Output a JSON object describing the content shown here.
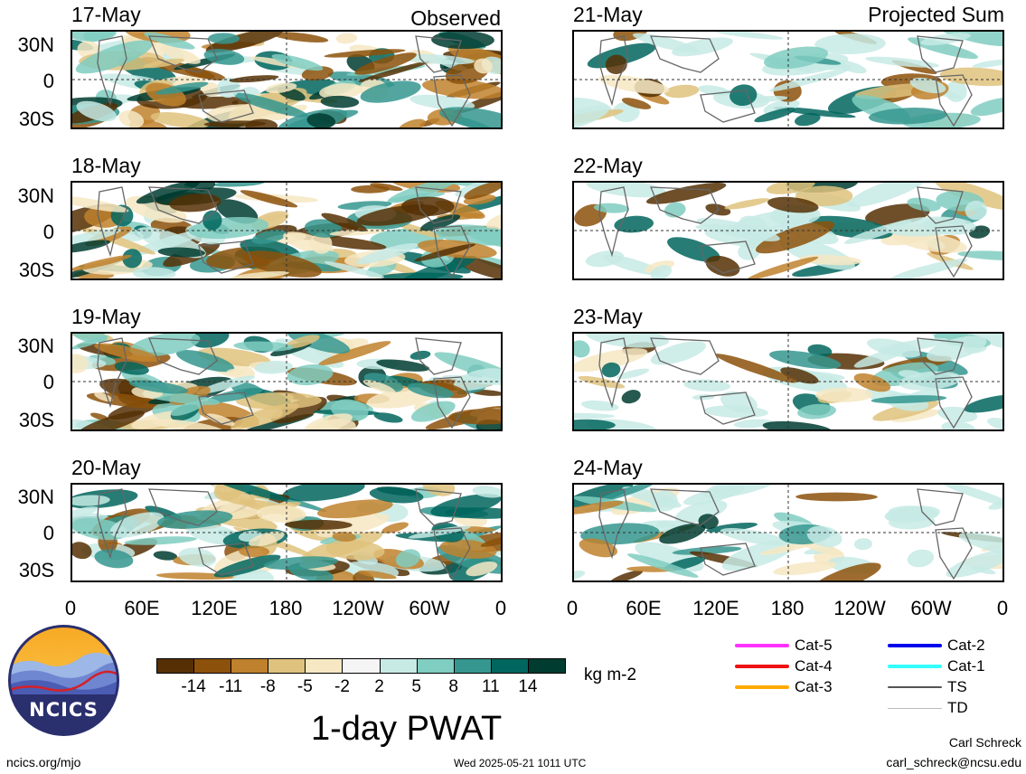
{
  "observed_header": "Observed",
  "projected_header": "Projected Sum",
  "observed_dates": [
    "17-May",
    "18-May",
    "19-May",
    "20-May"
  ],
  "projected_dates": [
    "21-May",
    "22-May",
    "23-May",
    "24-May"
  ],
  "lat_labels": [
    "30N",
    "0",
    "30S"
  ],
  "lon_labels": [
    "0",
    "60E",
    "120E",
    "180",
    "120W",
    "60W",
    "0"
  ],
  "colorbar": {
    "colors": [
      "#553005",
      "#8c510a",
      "#bf812d",
      "#dfc27d",
      "#f6e8c3",
      "#f5f5f5",
      "#c7eae5",
      "#80cdc1",
      "#35978f",
      "#01665e",
      "#003c30"
    ],
    "labels": [
      "-14",
      "-11",
      "-8",
      "-5",
      "-2",
      "2",
      "5",
      "8",
      "11",
      "14"
    ],
    "unit": "kg m-2"
  },
  "storm_legend": [
    {
      "label": "Cat-5",
      "color": "#ff33ff"
    },
    {
      "label": "Cat-4",
      "color": "#ee1111"
    },
    {
      "label": "Cat-3",
      "color": "#ffaa00"
    },
    {
      "label": "Cat-2",
      "color": "#0000ee"
    },
    {
      "label": "Cat-1",
      "color": "#33ffff"
    },
    {
      "label": "TS",
      "color": "#555555"
    },
    {
      "label": "TD",
      "color": "#bbbbbb"
    }
  ],
  "logo_text": "NCICS",
  "title": "1-day PWAT",
  "footer_left": "ncics.org/mjo",
  "footer_center": "Wed 2025-05-21 1011 UTC",
  "footer_author": "Carl Schreck",
  "footer_email": "carl_schreck@ncsu.edu"
}
